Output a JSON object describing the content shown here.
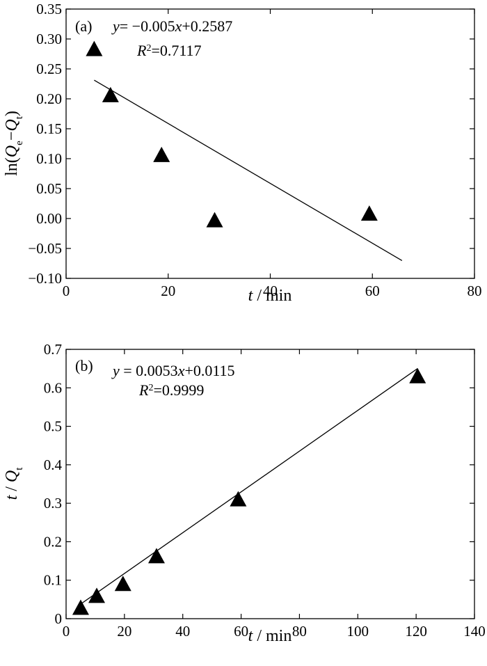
{
  "chart_data": [
    {
      "type": "scatter",
      "panel": "(a)",
      "equation": "y= −0.005x+0.2587",
      "r2": "R2=0.7117",
      "xlabel": "t / min",
      "ylabel": "ln(Qe−Qt)",
      "xlim": [
        0,
        80
      ],
      "ylim": [
        -0.1,
        0.35
      ],
      "xticks": [
        "0",
        "20",
        "40",
        "60",
        "80"
      ],
      "yticks": [
        "−0.10",
        "−0.05",
        "0.00",
        "0.05",
        "0.10",
        "0.15",
        "0.20",
        "0.25",
        "0.30",
        "0.35"
      ],
      "series": [
        {
          "x": [
            5.5,
            8.7,
            18.7,
            29.1,
            59.4
          ],
          "y": [
            0.283,
            0.206,
            0.106,
            -0.003,
            0.008
          ]
        }
      ],
      "fit": {
        "slope": -0.005,
        "intercept": 0.2587,
        "x_range": [
          5.5,
          65.8
        ]
      }
    },
    {
      "type": "scatter",
      "panel": "(b)",
      "equation": "y = 0.0053x+0.0115",
      "r2": "R2=0.9999",
      "xlabel": "t / min",
      "ylabel": "t / Qt",
      "xlim": [
        0,
        140
      ],
      "ylim": [
        0,
        0.7
      ],
      "xticks": [
        "0",
        "20",
        "40",
        "60",
        "80",
        "100",
        "120",
        "140"
      ],
      "yticks": [
        "0",
        "0.1",
        "0.2",
        "0.3",
        "0.4",
        "0.5",
        "0.6",
        "0.7"
      ],
      "series": [
        {
          "x": [
            5,
            10.5,
            19.5,
            31,
            59,
            120.5
          ],
          "y": [
            0.028,
            0.059,
            0.09,
            0.162,
            0.31,
            0.63
          ]
        }
      ],
      "fit": {
        "slope": 0.0053,
        "intercept": 0.0115,
        "x_range": [
          5,
          120.5
        ]
      }
    }
  ]
}
